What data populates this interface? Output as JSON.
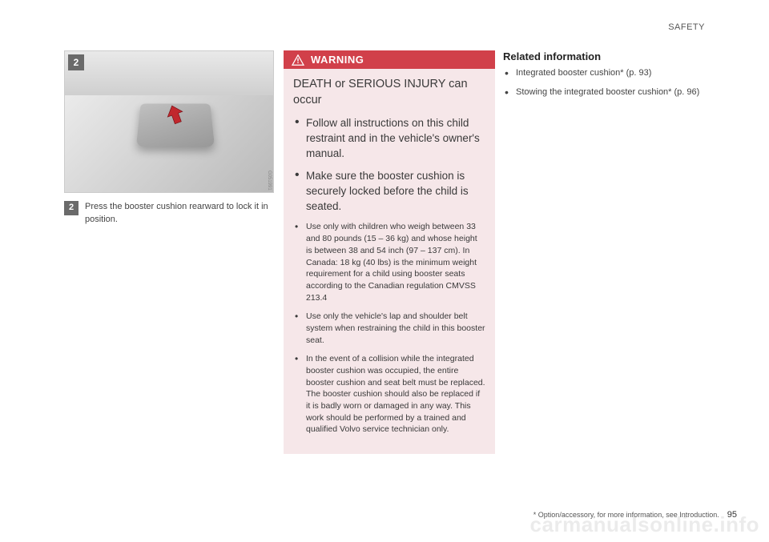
{
  "header": {
    "section": "SAFETY"
  },
  "illustration": {
    "badge": "2",
    "arrow_color": "#c1272d",
    "image_code": "G051991"
  },
  "step": {
    "num": "2",
    "text": "Press the booster cushion rearward to lock it in position."
  },
  "warning": {
    "label": "WARNING",
    "header_bg": "#d1404a",
    "box_bg": "#f6e7e9",
    "lead": "DEATH or SERIOUS INJURY can occur",
    "items": [
      {
        "size": "big",
        "text": "Follow all instructions on this child restraint and in the vehicle's owner's manual."
      },
      {
        "size": "big",
        "text": "Make sure the booster cushion is securely locked before the child is seated."
      },
      {
        "size": "small",
        "text": "Use only with children who weigh between 33 and 80 pounds (15 – 36 kg) and whose height is between 38 and 54 inch (97 – 137 cm). In Canada: 18 kg (40 lbs) is the minimum weight requirement for a child using booster seats according to the Canadian regulation CMVSS 213.4"
      },
      {
        "size": "small",
        "text": "Use only the vehicle's lap and shoulder belt system when restraining the child in this booster seat."
      },
      {
        "size": "small",
        "text": "In the event of a collision while the integrated booster cushion was occupied, the entire booster cushion and seat belt must be replaced. The booster cushion should also be replaced if it is badly worn or damaged in any way. This work should be performed by a trained and qualified Volvo service technician only."
      }
    ]
  },
  "related": {
    "heading": "Related information",
    "items": [
      "Integrated booster cushion* (p. 93)",
      "Stowing the integrated booster cushion* (p. 96)"
    ]
  },
  "footer": {
    "note": "* Option/accessory, for more information, see Introduction.",
    "page": "95"
  },
  "watermark": "carmanualsonline.info"
}
